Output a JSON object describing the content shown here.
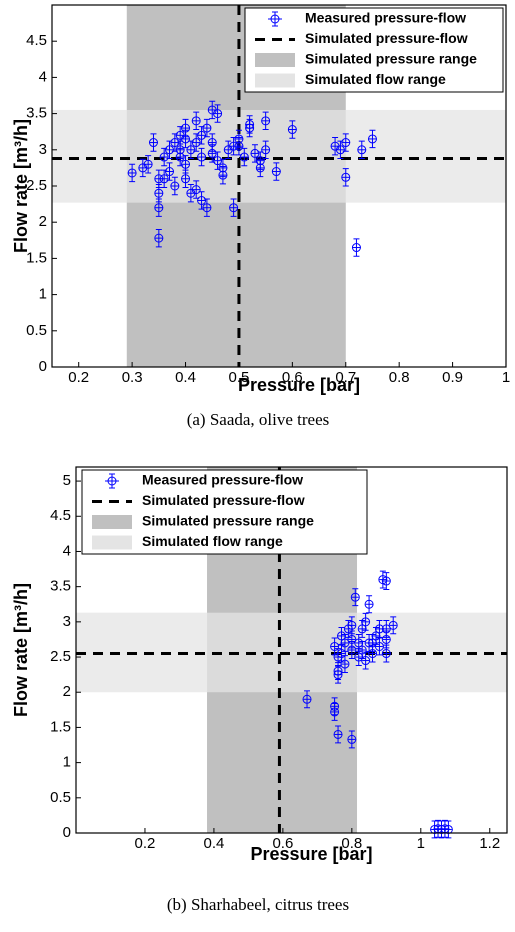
{
  "chart_data": [
    {
      "type": "scatter",
      "xlabel": "Pressure [bar]",
      "ylabel": "Flow rate [m³/h]",
      "caption": "(a) Saada, olive trees",
      "xlim": [
        0.15,
        1
      ],
      "xticks": [
        0.2,
        0.3,
        0.4,
        0.5,
        0.6,
        0.7,
        0.8,
        0.9,
        1
      ],
      "ylim": [
        0,
        5
      ],
      "yticks": [
        0,
        0.5,
        1,
        1.5,
        2,
        2.5,
        3,
        3.5,
        4,
        4.5
      ],
      "legend": "upper right",
      "series": [
        {
          "name": "Simulated pressure range",
          "style": "xband",
          "color": "#c0c0c0",
          "range": [
            0.29,
            0.7
          ]
        },
        {
          "name": "Simulated flow range",
          "style": "yband",
          "color": "#e4e4e4",
          "range": [
            2.27,
            3.55
          ]
        },
        {
          "name": "Measured pressure-flow",
          "style": "errorbar",
          "color": "#0000ff",
          "xerr": 0.008,
          "yerr": 0.12,
          "x": [
            0.3,
            0.32,
            0.33,
            0.34,
            0.35,
            0.35,
            0.35,
            0.35,
            0.36,
            0.37,
            0.37,
            0.38,
            0.38,
            0.39,
            0.39,
            0.4,
            0.4,
            0.4,
            0.41,
            0.41,
            0.42,
            0.42,
            0.42,
            0.43,
            0.43,
            0.43,
            0.44,
            0.44,
            0.45,
            0.45,
            0.46,
            0.46,
            0.47,
            0.47,
            0.48,
            0.49,
            0.49,
            0.5,
            0.51,
            0.52,
            0.52,
            0.53,
            0.54,
            0.55,
            0.55,
            0.57,
            0.6,
            0.68,
            0.69,
            0.7,
            0.7,
            0.72,
            0.73,
            0.75,
            0.45,
            0.4,
            0.39,
            0.36,
            0.54,
            0.5
          ],
          "y": [
            2.68,
            2.75,
            2.8,
            3.1,
            2.6,
            2.4,
            2.2,
            1.78,
            2.9,
            3.0,
            2.7,
            2.5,
            3.1,
            2.9,
            3.2,
            3.3,
            2.8,
            2.6,
            3.0,
            2.4,
            3.4,
            3.1,
            2.45,
            2.9,
            3.2,
            2.3,
            3.3,
            2.2,
            2.95,
            3.1,
            3.5,
            2.85,
            2.75,
            2.65,
            3.0,
            3.05,
            2.2,
            3.05,
            2.9,
            3.35,
            3.3,
            2.95,
            2.85,
            3.4,
            3.0,
            2.7,
            3.28,
            3.05,
            3.0,
            3.1,
            2.62,
            1.65,
            3.0,
            3.15,
            3.55,
            3.15,
            3.0,
            2.6,
            2.75,
            3.15
          ]
        },
        {
          "name": "Simulated pressure-flow",
          "style": "dashed",
          "color": "#000000",
          "x": 0.5,
          "y": 2.88
        }
      ]
    },
    {
      "type": "scatter",
      "xlabel": "Pressure [bar]",
      "ylabel": "Flow rate [m³/h]",
      "caption": "(b) Sharhabeel, citrus trees",
      "xlim": [
        0,
        1.25
      ],
      "xticks": [
        0.2,
        0.4,
        0.6,
        0.8,
        1,
        1.2
      ],
      "ylim": [
        0,
        5.2
      ],
      "yticks": [
        0,
        0.5,
        1,
        1.5,
        2,
        2.5,
        3,
        3.5,
        4,
        4.5,
        5
      ],
      "legend": "upper left",
      "series": [
        {
          "name": "Simulated pressure range",
          "style": "xband",
          "color": "#c0c0c0",
          "range": [
            0.38,
            0.815
          ]
        },
        {
          "name": "Simulated flow range",
          "style": "yband",
          "color": "#e4e4e4",
          "range": [
            2.0,
            3.13
          ]
        },
        {
          "name": "Measured pressure-flow",
          "style": "errorbar",
          "color": "#0000ff",
          "xerr": 0.01,
          "yerr": 0.12,
          "x": [
            0.67,
            0.75,
            0.75,
            0.76,
            0.8,
            0.75,
            0.76,
            0.76,
            0.77,
            0.77,
            0.78,
            0.78,
            0.79,
            0.8,
            0.8,
            0.81,
            0.82,
            0.82,
            0.83,
            0.83,
            0.84,
            0.84,
            0.85,
            0.85,
            0.86,
            0.87,
            0.88,
            0.88,
            0.89,
            0.9,
            0.9,
            0.9,
            0.92,
            0.9,
            1.04,
            1.05,
            1.06,
            1.07,
            1.08,
            0.76,
            0.8,
            0.86
          ],
          "y": [
            1.9,
            1.8,
            1.72,
            1.4,
            1.33,
            2.65,
            2.5,
            2.3,
            2.55,
            2.8,
            2.7,
            2.4,
            2.9,
            2.6,
            2.75,
            3.35,
            2.7,
            2.5,
            2.9,
            2.6,
            3.0,
            2.45,
            3.25,
            2.7,
            2.55,
            2.8,
            2.9,
            2.65,
            3.6,
            3.58,
            2.75,
            2.55,
            2.95,
            2.9,
            0.05,
            0.06,
            0.05,
            0.06,
            0.05,
            2.25,
            2.95,
            2.7
          ]
        },
        {
          "name": "Simulated pressure-flow",
          "style": "dashed",
          "color": "#000000",
          "x": 0.59,
          "y": 2.55
        }
      ]
    }
  ]
}
